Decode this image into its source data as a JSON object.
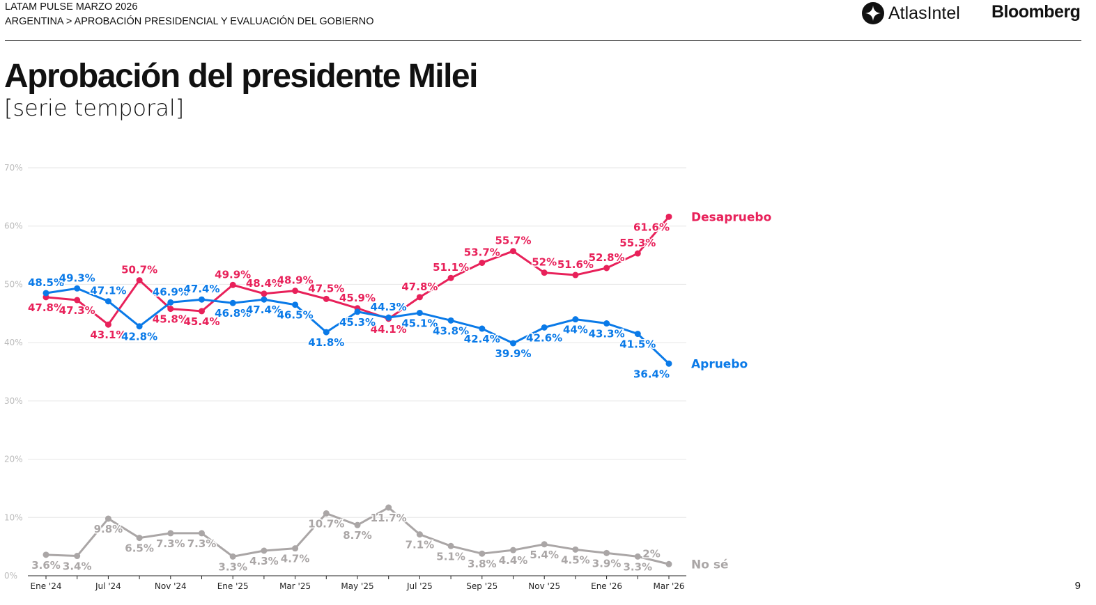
{
  "header": {
    "line1": "LATAM PULSE MARZO 2026",
    "line2": "ARGENTINA > APROBACIÓN PRESIDENCIAL Y EVALUACIÓN DEL GOBIERNO",
    "logo_atlas": "AtlasIntel",
    "logo_bloomberg": "Bloomberg"
  },
  "title": "Aprobación del presidente Milei",
  "subtitle": "[serie temporal]",
  "page_number": "9",
  "chart_data": {
    "type": "line",
    "categories": [
      "Ene '24",
      "",
      "Jul '24",
      "",
      "Nov '24",
      "",
      "Ene '25",
      "",
      "Mar '25",
      "",
      "May '25",
      "",
      "Jul '25",
      "",
      "Sep '25",
      "",
      "Nov '25",
      "",
      "Ene '26",
      "",
      "Mar '26"
    ],
    "ylim": [
      0,
      70
    ],
    "yticks": [
      "0%",
      "10%",
      "20%",
      "30%",
      "40%",
      "50%",
      "60%",
      "70%"
    ],
    "grid": true,
    "legend": "end-of-line labels, right",
    "series": [
      {
        "name": "Desapruebo",
        "color": "#e8215a",
        "values": [
          47.8,
          47.3,
          43.1,
          50.7,
          45.8,
          45.4,
          49.9,
          48.4,
          48.9,
          47.5,
          45.9,
          44.1,
          47.8,
          51.1,
          53.7,
          55.7,
          52,
          51.6,
          52.8,
          55.3,
          61.6
        ],
        "labels": [
          "47.8%",
          "47.3%",
          "43.1%",
          "50.7%",
          "45.8%",
          "45.4%",
          "49.9%",
          "48.4%",
          "48.9%",
          "47.5%",
          "45.9%",
          "44.1%",
          "47.8%",
          "51.1%",
          "53.7%",
          "55.7%",
          "52%",
          "51.6%",
          "52.8%",
          "55.3%",
          "61.6%"
        ]
      },
      {
        "name": "Apruebo",
        "color": "#0a7ae8",
        "values": [
          48.5,
          49.3,
          47.1,
          42.8,
          46.9,
          47.4,
          46.8,
          47.4,
          46.5,
          41.8,
          45.3,
          44.3,
          45.1,
          43.8,
          42.4,
          39.9,
          42.6,
          44,
          43.3,
          41.5,
          36.4
        ],
        "labels": [
          "48.5%",
          "49.3%",
          "47.1%",
          "42.8%",
          "46.9%",
          "47.4%",
          "46.8%",
          "47.4%",
          "46.5%",
          "41.8%",
          "45.3%",
          "44.3%",
          "45.1%",
          "43.8%",
          "42.4%",
          "39.9%",
          "42.6%",
          "44%",
          "43.3%",
          "41.5%",
          "36.4%"
        ]
      },
      {
        "name": "No sé",
        "color": "#aaa6a6",
        "values": [
          3.6,
          3.4,
          9.8,
          6.5,
          7.3,
          7.3,
          3.3,
          4.3,
          4.7,
          10.7,
          8.7,
          11.7,
          7.1,
          5.1,
          3.8,
          4.4,
          5.4,
          4.5,
          3.9,
          3.3,
          2
        ],
        "labels": [
          "3.6%",
          "3.4%",
          "9.8%",
          "6.5%",
          "7.3%",
          "7.3%",
          "3.3%",
          "4.3%",
          "4.7%",
          "10.7%",
          "8.7%",
          "11.7%",
          "7.1%",
          "5.1%",
          "3.8%",
          "4.4%",
          "5.4%",
          "4.5%",
          "3.9%",
          "3.3%",
          "2%"
        ]
      }
    ]
  }
}
